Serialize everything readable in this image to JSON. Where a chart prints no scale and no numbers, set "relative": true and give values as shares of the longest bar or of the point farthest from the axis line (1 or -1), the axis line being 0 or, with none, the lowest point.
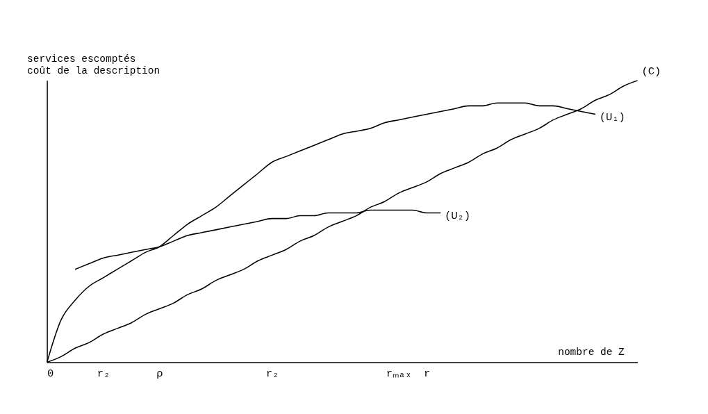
{
  "chart_data": {
    "type": "line",
    "relative": true,
    "xlabel": "nombre de  Z",
    "ylabel": "services escomptés\ncoût de la description",
    "marker": "none",
    "line_style": "solid",
    "grid": false,
    "categories": [
      "0",
      null,
      null,
      null,
      "r₂",
      null,
      null,
      null,
      "ρ",
      null,
      null,
      null,
      null,
      null,
      null,
      null,
      "r₂",
      null,
      null,
      null,
      null,
      null,
      null,
      null,
      null,
      "rₘₐₓ",
      null,
      "r",
      null,
      null,
      null,
      null,
      null,
      null,
      null,
      null,
      null,
      null,
      null,
      null,
      null,
      null,
      null
    ],
    "series": [
      {
        "name": "(C)",
        "color": "#000000",
        "values": [
          0,
          0.02,
          0.05,
          0.07,
          0.1,
          0.12,
          0.14,
          0.17,
          0.19,
          0.21,
          0.24,
          0.26,
          0.29,
          0.31,
          0.33,
          0.36,
          0.38,
          0.4,
          0.43,
          0.45,
          0.48,
          0.5,
          0.52,
          0.55,
          0.57,
          0.6,
          0.62,
          0.64,
          0.67,
          0.69,
          0.71,
          0.74,
          0.76,
          0.79,
          0.81,
          0.83,
          0.86,
          0.88,
          0.9,
          0.93,
          0.95,
          0.98,
          1
        ]
      },
      {
        "name": "(U₁)",
        "color": "#000000",
        "values": [
          0,
          0.15,
          0.22,
          0.27,
          0.3,
          0.33,
          0.36,
          0.39,
          0.41,
          0.45,
          0.49,
          0.52,
          0.55,
          0.59,
          0.63,
          0.67,
          0.71,
          0.73,
          0.75,
          0.77,
          0.79,
          0.81,
          0.82,
          0.83,
          0.85,
          0.86,
          0.87,
          0.88,
          0.89,
          0.9,
          0.91,
          0.91,
          0.92,
          0.92,
          0.92,
          0.91,
          0.91,
          0.9,
          0.89,
          0.88,
          null,
          null,
          null
        ]
      },
      {
        "name": "(U₂)",
        "color": "#000000",
        "values": [
          null,
          null,
          0.33,
          0.35,
          0.37,
          0.38,
          0.39,
          0.4,
          0.41,
          0.43,
          0.45,
          0.46,
          0.47,
          0.48,
          0.49,
          0.5,
          0.51,
          0.51,
          0.52,
          0.52,
          0.53,
          0.53,
          0.53,
          0.54,
          0.54,
          0.54,
          0.54,
          0.53,
          0.53,
          null,
          null,
          null,
          null,
          null,
          null,
          null,
          null,
          null,
          null,
          null,
          null,
          null,
          null
        ]
      }
    ]
  }
}
